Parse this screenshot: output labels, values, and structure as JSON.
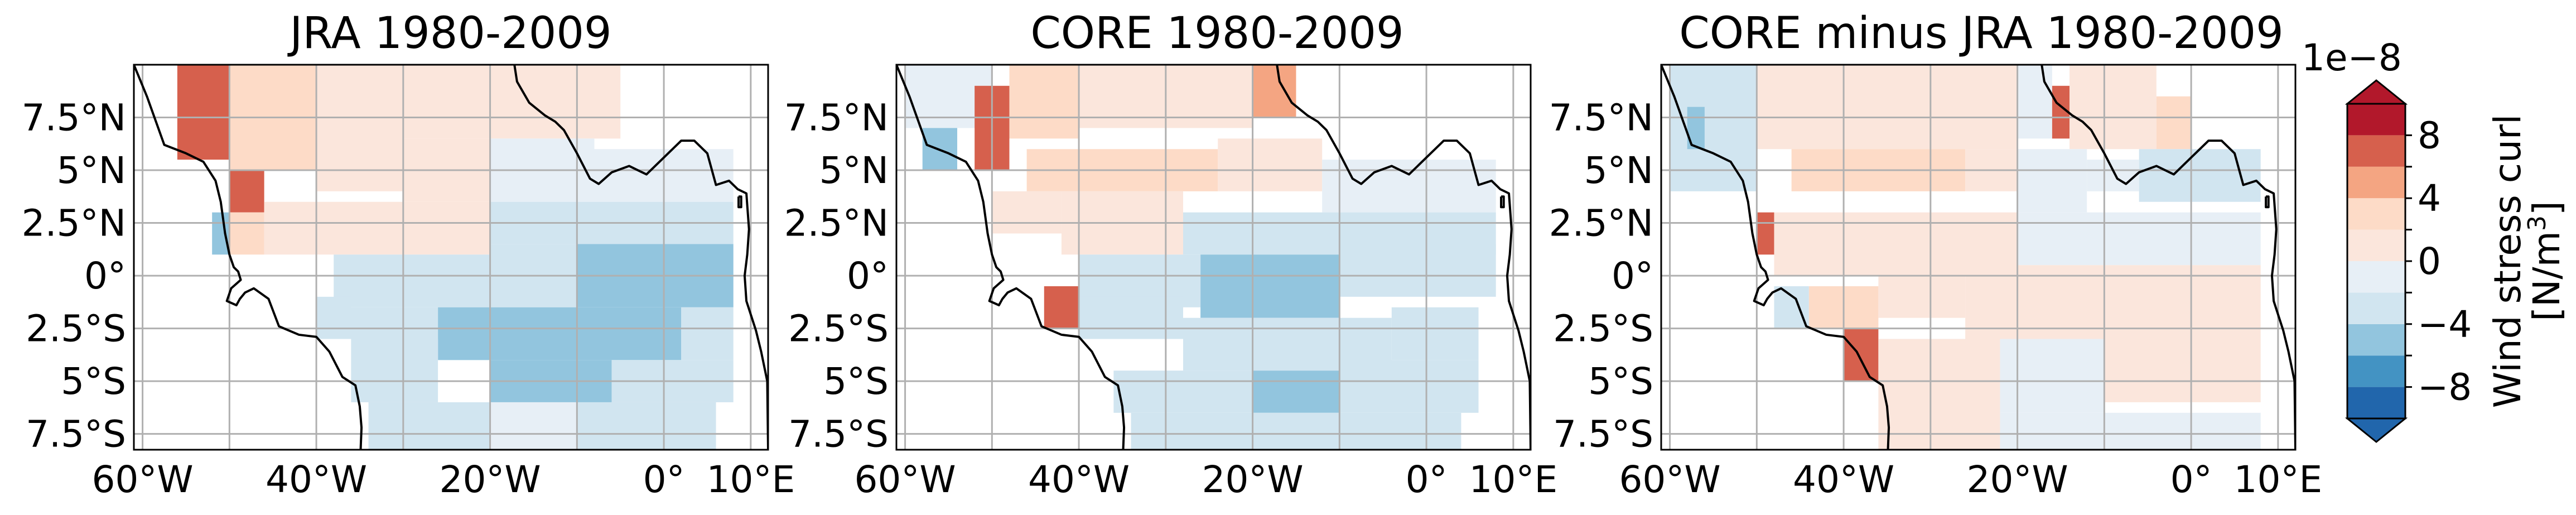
{
  "chart_data": [
    {
      "type": "heatmap",
      "title": "JRA 1980-2009",
      "x_ticks": [
        "60°W",
        "40°W",
        "20°W",
        "0°",
        "10°E"
      ],
      "x_tick_values": [
        -60,
        -40,
        -20,
        0,
        10
      ],
      "y_ticks": [
        "7.5°N",
        "5°N",
        "2.5°N",
        "0°",
        "2.5°S",
        "5°S",
        "7.5°S"
      ],
      "y_tick_values": [
        7.5,
        5,
        2.5,
        0,
        -2.5,
        -5,
        -7.5
      ],
      "xlim": [
        -61,
        12
      ],
      "ylim": [
        -8.25,
        10
      ],
      "grid": true,
      "units": "N/m^3 (x 1e-8)",
      "fields": [
        {
          "lon": [
            -56,
            -50
          ],
          "lat": [
            5.5,
            10
          ],
          "value": 6
        },
        {
          "lon": [
            -50,
            -40
          ],
          "lat": [
            5,
            10
          ],
          "value": 2
        },
        {
          "lon": [
            -40,
            -30
          ],
          "lat": [
            4,
            10
          ],
          "value": 1
        },
        {
          "lon": [
            -30,
            -5
          ],
          "lat": [
            6.5,
            10
          ],
          "value": 1
        },
        {
          "lon": [
            -30,
            -20
          ],
          "lat": [
            3.5,
            6.5
          ],
          "value": 1
        },
        {
          "lon": [
            -20,
            -8
          ],
          "lat": [
            3.5,
            6.5
          ],
          "value": -1
        },
        {
          "lon": [
            -8,
            8
          ],
          "lat": [
            3.5,
            6
          ],
          "value": -1
        },
        {
          "lon": [
            -50,
            -46
          ],
          "lat": [
            3,
            5
          ],
          "value": 6
        },
        {
          "lon": [
            -50,
            -46
          ],
          "lat": [
            1,
            3
          ],
          "value": 2
        },
        {
          "lon": [
            -52,
            -50
          ],
          "lat": [
            1,
            3
          ],
          "value": -6
        },
        {
          "lon": [
            -46,
            -20
          ],
          "lat": [
            1,
            3.5
          ],
          "value": 1
        },
        {
          "lon": [
            -20,
            -8
          ],
          "lat": [
            1.5,
            3.5
          ],
          "value": -3
        },
        {
          "lon": [
            -8,
            8
          ],
          "lat": [
            1.5,
            3.5
          ],
          "value": -3
        },
        {
          "lon": [
            -38,
            -20
          ],
          "lat": [
            -1.5,
            1
          ],
          "value": -3
        },
        {
          "lon": [
            -20,
            -10
          ],
          "lat": [
            -1.5,
            1.5
          ],
          "value": -3
        },
        {
          "lon": [
            -10,
            8
          ],
          "lat": [
            -1.5,
            1.5
          ],
          "value": -5
        },
        {
          "lon": [
            -38,
            -26
          ],
          "lat": [
            -3,
            -1.5
          ],
          "value": -3
        },
        {
          "lon": [
            -26,
            2
          ],
          "lat": [
            -4,
            -1.5
          ],
          "value": -5
        },
        {
          "lon": [
            2,
            8
          ],
          "lat": [
            -4,
            -1.5
          ],
          "value": -3
        },
        {
          "lon": [
            -40,
            -36
          ],
          "lat": [
            -3,
            -1
          ],
          "value": -3
        },
        {
          "lon": [
            -36,
            -26
          ],
          "lat": [
            -6,
            -3
          ],
          "value": -3
        },
        {
          "lon": [
            -20,
            -6
          ],
          "lat": [
            -6,
            -4
          ],
          "value": -5
        },
        {
          "lon": [
            -6,
            8
          ],
          "lat": [
            -6,
            -4
          ],
          "value": -3
        },
        {
          "lon": [
            -34,
            -20
          ],
          "lat": [
            -8.25,
            -6
          ],
          "value": -3
        },
        {
          "lon": [
            -20,
            -10
          ],
          "lat": [
            -8.25,
            -6
          ],
          "value": -1
        },
        {
          "lon": [
            -10,
            6
          ],
          "lat": [
            -8.25,
            -6
          ],
          "value": -3
        }
      ]
    },
    {
      "type": "heatmap",
      "title": "CORE 1980-2009",
      "x_ticks": [
        "60°W",
        "40°W",
        "20°W",
        "0°",
        "10°E"
      ],
      "x_tick_values": [
        -60,
        -40,
        -20,
        0,
        10
      ],
      "y_ticks": [
        "7.5°N",
        "5°N",
        "2.5°N",
        "0°",
        "2.5°S",
        "5°S",
        "7.5°S"
      ],
      "y_tick_values": [
        7.5,
        5,
        2.5,
        0,
        -2.5,
        -5,
        -7.5
      ],
      "xlim": [
        -61,
        12
      ],
      "ylim": [
        -8.25,
        10
      ],
      "grid": true,
      "units": "N/m^3 (x 1e-8)",
      "fields": [
        {
          "lon": [
            -60,
            -50
          ],
          "lat": [
            7,
            10
          ],
          "value": -1
        },
        {
          "lon": [
            -58,
            -54
          ],
          "lat": [
            5,
            7
          ],
          "value": -5
        },
        {
          "lon": [
            -52,
            -48
          ],
          "lat": [
            5,
            9
          ],
          "value": 6
        },
        {
          "lon": [
            -48,
            -40
          ],
          "lat": [
            6.5,
            10
          ],
          "value": 3
        },
        {
          "lon": [
            -40,
            -20
          ],
          "lat": [
            7,
            10
          ],
          "value": 1
        },
        {
          "lon": [
            -20,
            -15
          ],
          "lat": [
            7.5,
            10
          ],
          "value": 5
        },
        {
          "lon": [
            -46,
            -24
          ],
          "lat": [
            4,
            6
          ],
          "value": 3
        },
        {
          "lon": [
            -24,
            -12
          ],
          "lat": [
            4,
            6.5
          ],
          "value": 1
        },
        {
          "lon": [
            -12,
            8
          ],
          "lat": [
            3,
            5.5
          ],
          "value": -1
        },
        {
          "lon": [
            -50,
            -42
          ],
          "lat": [
            2,
            4
          ],
          "value": 1
        },
        {
          "lon": [
            -42,
            -28
          ],
          "lat": [
            1,
            4
          ],
          "value": 1
        },
        {
          "lon": [
            -28,
            -8
          ],
          "lat": [
            1,
            3
          ],
          "value": -3
        },
        {
          "lon": [
            -8,
            8
          ],
          "lat": [
            1,
            3
          ],
          "value": -3
        },
        {
          "lon": [
            -40,
            -26
          ],
          "lat": [
            -1.5,
            1
          ],
          "value": -3
        },
        {
          "lon": [
            -26,
            -10
          ],
          "lat": [
            -2,
            1
          ],
          "value": -5
        },
        {
          "lon": [
            -10,
            8
          ],
          "lat": [
            -1,
            1.5
          ],
          "value": -3
        },
        {
          "lon": [
            -44,
            -40
          ],
          "lat": [
            -2.5,
            -0.5
          ],
          "value": 6
        },
        {
          "lon": [
            -40,
            -28
          ],
          "lat": [
            -3,
            -1
          ],
          "value": -3
        },
        {
          "lon": [
            -28,
            -4
          ],
          "lat": [
            -4.5,
            -2
          ],
          "value": -3
        },
        {
          "lon": [
            -4,
            6
          ],
          "lat": [
            -4,
            -1.5
          ],
          "value": -3
        },
        {
          "lon": [
            -36,
            -20
          ],
          "lat": [
            -6.5,
            -4.5
          ],
          "value": -3
        },
        {
          "lon": [
            -20,
            -10
          ],
          "lat": [
            -6.5,
            -4.5
          ],
          "value": -5
        },
        {
          "lon": [
            -10,
            6
          ],
          "lat": [
            -6.5,
            -4
          ],
          "value": -3
        },
        {
          "lon": [
            -34,
            -14
          ],
          "lat": [
            -8.25,
            -6.5
          ],
          "value": -3
        },
        {
          "lon": [
            -14,
            4
          ],
          "lat": [
            -8.25,
            -6.5
          ],
          "value": -3
        }
      ]
    },
    {
      "type": "heatmap",
      "title": "CORE minus JRA 1980-2009",
      "x_ticks": [
        "60°W",
        "40°W",
        "20°W",
        "0°",
        "10°E"
      ],
      "x_tick_values": [
        -60,
        -40,
        -20,
        0,
        10
      ],
      "y_ticks": [
        "7.5°N",
        "5°N",
        "2.5°N",
        "0°",
        "2.5°S",
        "5°S",
        "7.5°S"
      ],
      "y_tick_values": [
        7.5,
        5,
        2.5,
        0,
        -2.5,
        -5,
        -7.5
      ],
      "xlim": [
        -61,
        12
      ],
      "ylim": [
        -8.25,
        10
      ],
      "grid": true,
      "units": "N/m^3 (x 1e-8)",
      "fields": [
        {
          "lon": [
            -60,
            -50
          ],
          "lat": [
            4,
            10
          ],
          "value": -3
        },
        {
          "lon": [
            -58,
            -56
          ],
          "lat": [
            6,
            8
          ],
          "value": -5
        },
        {
          "lon": [
            -50,
            -40
          ],
          "lat": [
            6,
            10
          ],
          "value": 1
        },
        {
          "lon": [
            -40,
            -20
          ],
          "lat": [
            6,
            10
          ],
          "value": 1
        },
        {
          "lon": [
            -20,
            -16
          ],
          "lat": [
            6.5,
            10
          ],
          "value": -1
        },
        {
          "lon": [
            -16,
            -14
          ],
          "lat": [
            6.5,
            9
          ],
          "value": 6
        },
        {
          "lon": [
            -14,
            -4
          ],
          "lat": [
            6,
            10
          ],
          "value": 1
        },
        {
          "lon": [
            -4,
            0
          ],
          "lat": [
            6,
            8.5
          ],
          "value": 3
        },
        {
          "lon": [
            -46,
            -26
          ],
          "lat": [
            4,
            6
          ],
          "value": 3
        },
        {
          "lon": [
            -26,
            -20
          ],
          "lat": [
            4,
            6
          ],
          "value": 1
        },
        {
          "lon": [
            -20,
            -12
          ],
          "lat": [
            3,
            6
          ],
          "value": -1
        },
        {
          "lon": [
            -12,
            -6
          ],
          "lat": [
            4,
            5.5
          ],
          "value": -1
        },
        {
          "lon": [
            -6,
            8
          ],
          "lat": [
            3.5,
            6
          ],
          "value": -3
        },
        {
          "lon": [
            -50,
            -48
          ],
          "lat": [
            1,
            3
          ],
          "value": 6
        },
        {
          "lon": [
            -48,
            -20
          ],
          "lat": [
            0,
            3
          ],
          "value": 1
        },
        {
          "lon": [
            -20,
            8
          ],
          "lat": [
            0.5,
            3
          ],
          "value": -1
        },
        {
          "lon": [
            -44,
            -36
          ],
          "lat": [
            -2.5,
            -0.5
          ],
          "value": 3
        },
        {
          "lon": [
            -48,
            -44
          ],
          "lat": [
            -2.5,
            -0.5
          ],
          "value": -3
        },
        {
          "lon": [
            -36,
            -26
          ],
          "lat": [
            -2,
            0
          ],
          "value": 1
        },
        {
          "lon": [
            -26,
            8
          ],
          "lat": [
            -3,
            0.5
          ],
          "value": 1
        },
        {
          "lon": [
            -40,
            -36
          ],
          "lat": [
            -5,
            -2.5
          ],
          "value": 6
        },
        {
          "lon": [
            -36,
            -22
          ],
          "lat": [
            -8.25,
            -3
          ],
          "value": 1
        },
        {
          "lon": [
            -22,
            -10
          ],
          "lat": [
            -6.5,
            -3
          ],
          "value": -1
        },
        {
          "lon": [
            -10,
            8
          ],
          "lat": [
            -6,
            -3
          ],
          "value": 1
        },
        {
          "lon": [
            -22,
            8
          ],
          "lat": [
            -8.25,
            -6.5
          ],
          "value": -1
        }
      ]
    }
  ],
  "colorbar": {
    "label": "Wind stress curl",
    "units": "[N/m",
    "units_sup": "3",
    "units_end": "]",
    "scale_label": "1e−8",
    "ticks": [
      "8",
      "4",
      "0",
      "−4",
      "−8"
    ],
    "tick_values": [
      8,
      4,
      0,
      -4,
      -8
    ],
    "range": [
      -10,
      10
    ],
    "levels": [
      -10,
      -8,
      -6,
      -4,
      -2,
      0,
      2,
      4,
      6,
      8,
      10
    ],
    "colors": [
      "#2166ac",
      "#4393c3",
      "#92c5de",
      "#d1e5f0",
      "#e7eff6",
      "#fbe6dc",
      "#fddbc7",
      "#f4a582",
      "#d6604d",
      "#b2182b"
    ],
    "over_color": "#b2182b",
    "under_color": "#2166ac"
  }
}
